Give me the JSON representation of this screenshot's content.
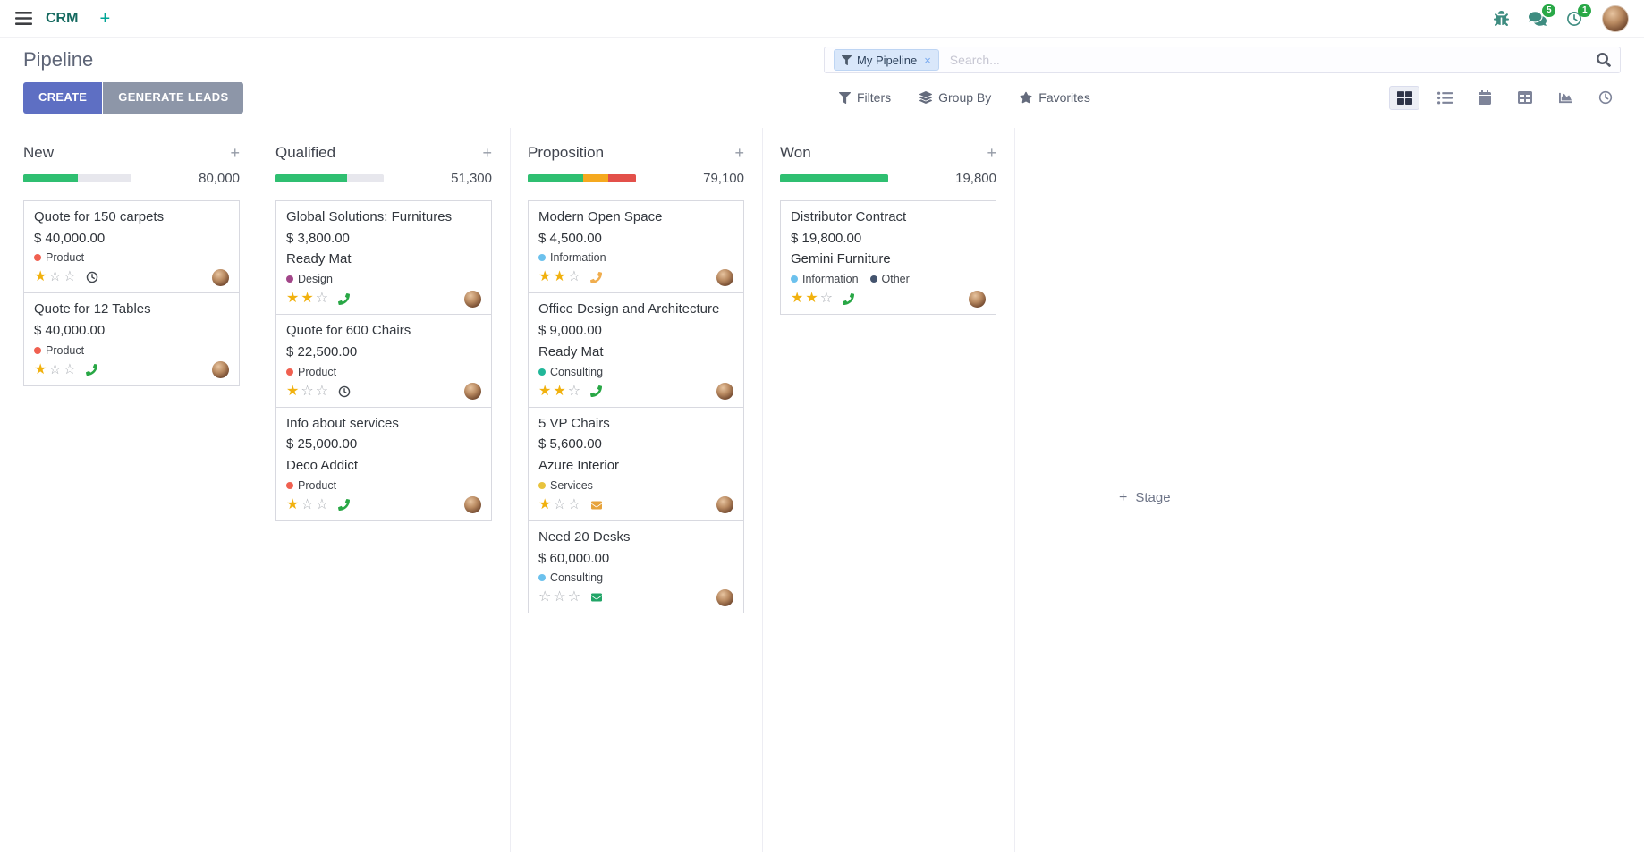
{
  "ui": {
    "plus": "+"
  },
  "navbar": {
    "app_name": "CRM",
    "messages_badge": "5",
    "activities_badge": "1"
  },
  "control_panel": {
    "title": "Pipeline",
    "buttons": {
      "create": "CREATE",
      "generate_leads": "GENERATE LEADS"
    },
    "search": {
      "facet_label": "My Pipeline",
      "remove": "×",
      "placeholder": "Search..."
    },
    "menus": {
      "filters": "Filters",
      "group_by": "Group By",
      "favorites": "Favorites"
    },
    "view_switcher": [
      "kanban",
      "list",
      "calendar",
      "pivot",
      "graph",
      "activity"
    ]
  },
  "kanban": {
    "add_stage": "Stage",
    "columns": [
      {
        "name": "New",
        "total": "80,000",
        "progress": [
          {
            "color": "#2fbf71",
            "width": "50%"
          }
        ],
        "cards": [
          {
            "title": "Quote for 150 carpets",
            "amount": "$ 40,000.00",
            "tags": [
              {
                "label": "Product",
                "color": "#f06050"
              }
            ],
            "stars_filled": "★",
            "stars_empty": "☆☆",
            "activity": {
              "type": "clock",
              "color": "#41464d"
            }
          },
          {
            "title": "Quote for 12 Tables",
            "amount": "$ 40,000.00",
            "tags": [
              {
                "label": "Product",
                "color": "#f06050"
              }
            ],
            "stars_filled": "★",
            "stars_empty": "☆☆",
            "activity": {
              "type": "phone",
              "color": "#28a745"
            }
          }
        ]
      },
      {
        "name": "Qualified",
        "total": "51,300",
        "progress": [
          {
            "color": "#2fbf71",
            "width": "66%"
          }
        ],
        "cards": [
          {
            "title": "Global Solutions: Furnitures",
            "amount": "$ 3,800.00",
            "partner": "Ready Mat",
            "tags": [
              {
                "label": "Design",
                "color": "#a24689"
              }
            ],
            "stars_filled": "★★",
            "stars_empty": "☆",
            "activity": {
              "type": "phone",
              "color": "#28a745"
            }
          },
          {
            "title": "Quote for 600 Chairs",
            "amount": "$ 22,500.00",
            "tags": [
              {
                "label": "Product",
                "color": "#f06050"
              }
            ],
            "stars_filled": "★",
            "stars_empty": "☆☆",
            "activity": {
              "type": "clock",
              "color": "#41464d"
            }
          },
          {
            "title": "Info about services",
            "amount": "$ 25,000.00",
            "partner": "Deco Addict",
            "tags": [
              {
                "label": "Product",
                "color": "#f06050"
              }
            ],
            "stars_filled": "★",
            "stars_empty": "☆☆",
            "activity": {
              "type": "phone",
              "color": "#28a745"
            }
          }
        ]
      },
      {
        "name": "Proposition",
        "total": "79,100",
        "progress": [
          {
            "color": "#2fbf71",
            "width": "51%"
          },
          {
            "color": "#f5a91f",
            "width": "23%"
          },
          {
            "color": "#e3504a",
            "width": "26%"
          }
        ],
        "cards": [
          {
            "title": "Modern Open Space",
            "amount": "$ 4,500.00",
            "tags": [
              {
                "label": "Information",
                "color": "#6cc1ed"
              }
            ],
            "stars_filled": "★★",
            "stars_empty": "☆",
            "activity": {
              "type": "phone",
              "color": "#f0ad4e"
            }
          },
          {
            "title": "Office Design and Architecture",
            "amount": "$ 9,000.00",
            "partner": "Ready Mat",
            "tags": [
              {
                "label": "Consulting",
                "color": "#21b799"
              }
            ],
            "stars_filled": "★★",
            "stars_empty": "☆",
            "activity": {
              "type": "phone",
              "color": "#28a745"
            }
          },
          {
            "title": "5 VP Chairs",
            "amount": "$ 5,600.00",
            "partner": "Azure Interior",
            "tags": [
              {
                "label": "Services",
                "color": "#e8c33d"
              }
            ],
            "stars_filled": "★",
            "stars_empty": "☆☆",
            "activity": {
              "type": "envelope",
              "color": "#e7a33b"
            }
          },
          {
            "title": "Need 20 Desks",
            "amount": "$ 60,000.00",
            "tags": [
              {
                "label": "Consulting",
                "color": "#6cc1ed"
              }
            ],
            "stars_filled": "",
            "stars_empty": "☆☆☆",
            "activity": {
              "type": "envelope",
              "color": "#21a567"
            }
          }
        ]
      },
      {
        "name": "Won",
        "total": "19,800",
        "progress": [
          {
            "color": "#2fbf71",
            "width": "100%"
          }
        ],
        "cards": [
          {
            "title": "Distributor Contract",
            "amount": "$ 19,800.00",
            "partner": "Gemini Furniture",
            "tags": [
              {
                "label": "Information",
                "color": "#6cc1ed"
              },
              {
                "label": "Other",
                "color": "#44546e"
              }
            ],
            "stars_filled": "★★",
            "stars_empty": "☆",
            "activity": {
              "type": "phone",
              "color": "#28a745"
            }
          }
        ]
      }
    ]
  }
}
